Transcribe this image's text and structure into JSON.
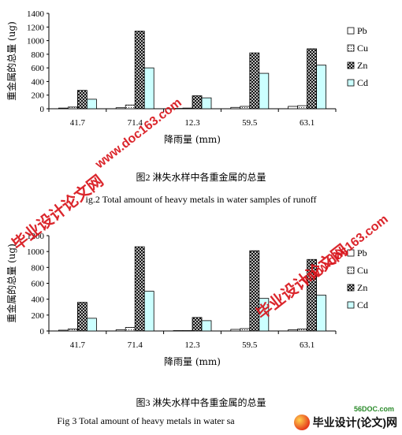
{
  "chart_data": [
    {
      "type": "bar",
      "title": "",
      "xlabel": "降雨量 (mm)",
      "ylabel": "重金属的总量 (ug)",
      "categories": [
        "41.7",
        "71.4",
        "12.3",
        "59.5",
        "63.1"
      ],
      "ylim": [
        0,
        1400
      ],
      "yticks": [
        0,
        200,
        400,
        600,
        800,
        1000,
        1200,
        1400
      ],
      "legend_position": "right",
      "grid": false,
      "series": [
        {
          "name": "Pb",
          "values": [
            10,
            15,
            5,
            20,
            35
          ]
        },
        {
          "name": "Cu",
          "values": [
            25,
            55,
            10,
            35,
            45
          ]
        },
        {
          "name": "Zn",
          "values": [
            270,
            1140,
            190,
            820,
            880
          ]
        },
        {
          "name": "Cd",
          "values": [
            140,
            600,
            160,
            520,
            640
          ]
        }
      ]
    },
    {
      "type": "bar",
      "title": "",
      "xlabel": "降雨量 (mm)",
      "ylabel": "重金属的总量 (ug)",
      "categories": [
        "41.7",
        "71.4",
        "12.3",
        "59.5",
        "63.1"
      ],
      "ylim": [
        0,
        1200
      ],
      "yticks": [
        0,
        200,
        400,
        600,
        800,
        1000,
        1200
      ],
      "legend_position": "right",
      "grid": false,
      "series": [
        {
          "name": "Pb",
          "values": [
            10,
            15,
            5,
            20,
            15
          ]
        },
        {
          "name": "Cu",
          "values": [
            25,
            45,
            5,
            30,
            25
          ]
        },
        {
          "name": "Zn",
          "values": [
            360,
            1060,
            170,
            1010,
            900
          ]
        },
        {
          "name": "Cd",
          "values": [
            160,
            500,
            130,
            410,
            450
          ]
        }
      ]
    }
  ],
  "series_styles": {
    "Pb": {
      "fill": "#ffffff",
      "pattern": "none"
    },
    "Cu": {
      "fill": "#ffffff",
      "pattern": "dots"
    },
    "Zn": {
      "fill": "#ffffff",
      "pattern": "crosshatch"
    },
    "Cd": {
      "fill": "#ccffff",
      "pattern": "none"
    }
  },
  "captions": {
    "fig2_cn": "图2 淋失水样中各重金属的总量",
    "fig2_en": "ig.2   Total amount of heavy metals in water samples of runoff",
    "fig3_cn": "图3 淋失水样中各重金属的总量",
    "fig3_en": "Fig 3    Total amount of heavy metals in water sa"
  },
  "watermarks": {
    "site1": "www.doc163.com",
    "site2": "www.doc163.com",
    "brand1": "毕业设计论文网",
    "brand2": "毕业设计论文网",
    "bottom_brand": "毕业设计(论文)网",
    "bottom_small": "56DOC.com"
  },
  "colors": {
    "watermark_red": "#d8141b"
  }
}
